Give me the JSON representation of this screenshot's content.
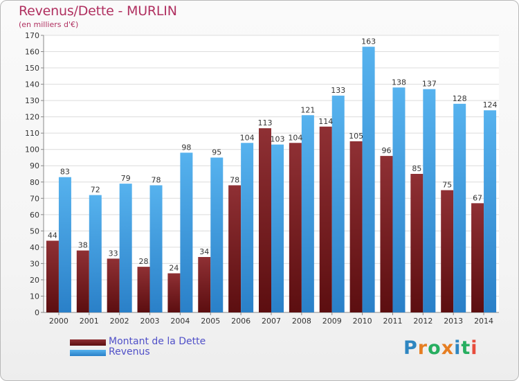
{
  "title": "Revenus/Dette - MURLIN",
  "subtitle": "(en milliers d'€)",
  "logo": {
    "text": "Proxiti",
    "letters": [
      "P",
      "r",
      "o",
      "x",
      "i",
      "t",
      "i"
    ],
    "colors": [
      "#2e86c1",
      "#e67e22",
      "#27ae60",
      "#e67e22",
      "#2e86c1",
      "#27ae60",
      "#e74c3c"
    ]
  },
  "chart_data": {
    "type": "bar",
    "title": "Revenus/Dette - MURLIN",
    "ylabel": "(en milliers d'€)",
    "xlabel": "",
    "ylim": [
      0,
      170
    ],
    "ytick_step": 10,
    "grid": true,
    "legend_position": "bottom-left",
    "categories": [
      "2000",
      "2001",
      "2002",
      "2003",
      "2004",
      "2005",
      "2006",
      "2007",
      "2008",
      "2009",
      "2010",
      "2011",
      "2012",
      "2013",
      "2014"
    ],
    "series": [
      {
        "name": "Montant de la Dette",
        "color": "#7a2426",
        "values": [
          44,
          38,
          33,
          28,
          24,
          34,
          78,
          113,
          104,
          114,
          105,
          96,
          85,
          75,
          67
        ]
      },
      {
        "name": "Revenus",
        "color": "#3a9ee0",
        "values": [
          83,
          72,
          79,
          78,
          98,
          95,
          104,
          103,
          121,
          133,
          163,
          138,
          137,
          128,
          124
        ]
      }
    ]
  }
}
